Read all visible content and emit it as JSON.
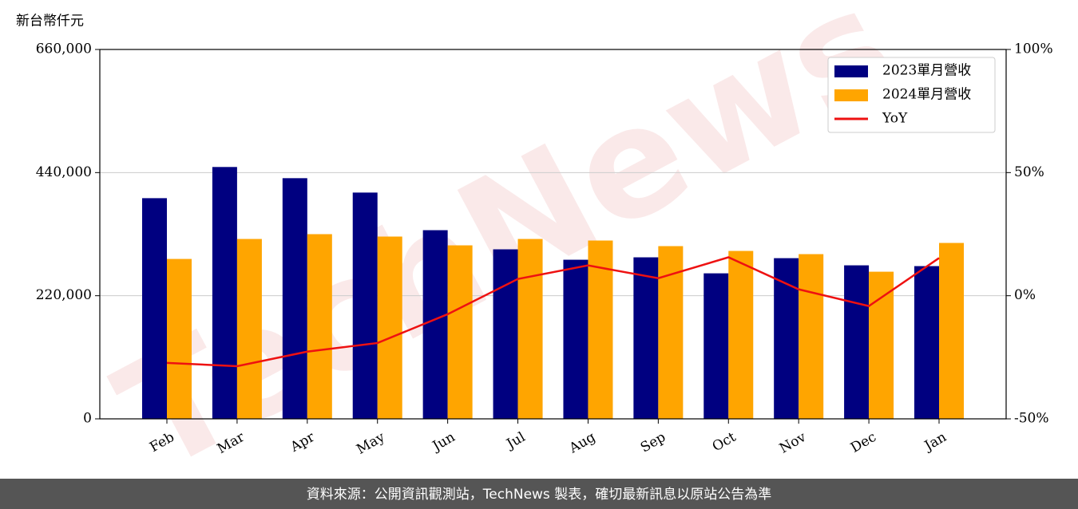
{
  "chart_data": {
    "type": "bar-line",
    "y_label": "新台幣仟元",
    "watermark": "TechNews",
    "footer": "資料來源：公開資訊觀測站，TechNews 製表，確切最新訊息以原站公告為準",
    "categories": [
      "Feb",
      "Mar",
      "Apr",
      "May",
      "Jun",
      "Jul",
      "Aug",
      "Sep",
      "Oct",
      "Nov",
      "Dec",
      "Jan"
    ],
    "series": [
      {
        "name": "2023單月營收",
        "color": "#000080",
        "kind": "bar",
        "values": [
          394300,
          450000,
          430000,
          404300,
          337100,
          302900,
          284300,
          288600,
          260000,
          287100,
          274300,
          272900
        ]
      },
      {
        "name": "2024單月營收",
        "color": "#ffa500",
        "kind": "bar",
        "values": [
          285700,
          321400,
          330000,
          325700,
          310000,
          321400,
          318600,
          308600,
          300000,
          294300,
          262900,
          314300
        ]
      },
      {
        "name": "YoY",
        "color": "#ee1111",
        "kind": "line",
        "axis": "y2",
        "values": [
          -27.3,
          -28.6,
          -22.7,
          -19.2,
          -7.5,
          6.8,
          12.3,
          7.1,
          15.6,
          2.6,
          -4.2,
          15.3
        ]
      }
    ],
    "ylim": [
      0,
      660000
    ],
    "yticks": [
      0,
      {
        "value": 220000,
        "label": "220,000"
      },
      {
        "value": 440000,
        "label": "440,000"
      },
      {
        "value": 660000,
        "label": "660,000"
      }
    ],
    "y2lim": [
      -50,
      100
    ],
    "y2ticks": [
      {
        "value": -50,
        "label": "-50%"
      },
      {
        "value": 0,
        "label": "0%"
      },
      {
        "value": 50,
        "label": "50%"
      },
      {
        "value": 100,
        "label": "100%"
      }
    ],
    "grid": true,
    "legend": "upper right"
  }
}
